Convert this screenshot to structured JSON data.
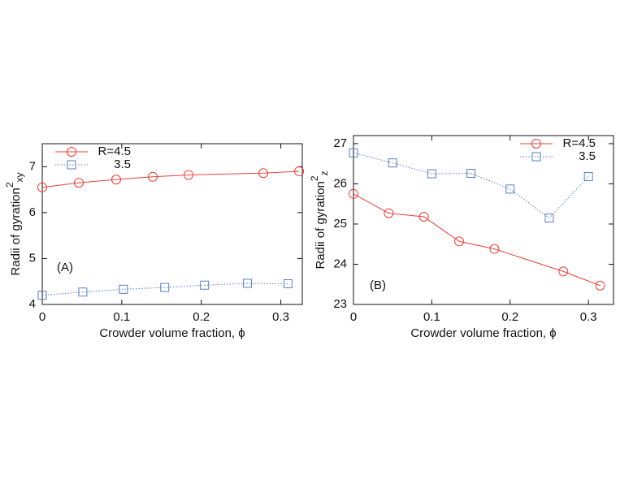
{
  "chart_data": [
    {
      "type": "line",
      "xlabel": "Crowder volume fraction, ϕ",
      "ylabel": {
        "text": "Radii of gyration",
        "sup": "2",
        "sub": "xy"
      },
      "annotation": "(A)",
      "xlim": [
        0,
        0.327
      ],
      "xticks": [
        0,
        0.1,
        0.2,
        0.3
      ],
      "ylim": [
        4,
        7.5
      ],
      "yticks": [
        4,
        5,
        6,
        7
      ],
      "legend": "upper left",
      "series": [
        {
          "name": "R=4.5",
          "color": "#e8403a",
          "marker": "circle",
          "dash": "solid",
          "x": [
            0,
            0.046,
            0.093,
            0.139,
            0.184,
            0.278,
            0.323
          ],
          "values": [
            6.55,
            6.65,
            6.72,
            6.78,
            6.82,
            6.86,
            6.9
          ]
        },
        {
          "name": "3.5",
          "color": "#5b7fc0",
          "marker": "square",
          "dash": "dotted",
          "x": [
            0,
            0.051,
            0.102,
            0.154,
            0.204,
            0.258,
            0.309
          ],
          "values": [
            4.2,
            4.27,
            4.33,
            4.37,
            4.42,
            4.46,
            4.45
          ]
        }
      ]
    },
    {
      "type": "line",
      "xlabel": "Crowder volume fraction, ϕ",
      "ylabel": {
        "text": "Radii of gyration",
        "sup": "2",
        "sub": "z"
      },
      "annotation": "(B)",
      "xlim": [
        0,
        0.332
      ],
      "xticks": [
        0,
        0.1,
        0.2,
        0.3
      ],
      "ylim": [
        23,
        27.2
      ],
      "yticks": [
        23,
        24,
        25,
        26,
        27
      ],
      "legend": "upper right",
      "series": [
        {
          "name": "R=4.5",
          "color": "#e8403a",
          "marker": "circle",
          "dash": "solid",
          "x": [
            0,
            0.045,
            0.09,
            0.135,
            0.18,
            0.268,
            0.315
          ],
          "values": [
            25.75,
            25.27,
            25.18,
            24.57,
            24.38,
            23.82,
            23.47
          ]
        },
        {
          "name": "3.5",
          "color": "#5b7fc0",
          "marker": "square",
          "dash": "dotted",
          "x": [
            0,
            0.05,
            0.1,
            0.15,
            0.2,
            0.25,
            0.3
          ],
          "values": [
            26.77,
            26.52,
            26.25,
            26.26,
            25.87,
            25.15,
            26.18
          ]
        }
      ]
    }
  ]
}
